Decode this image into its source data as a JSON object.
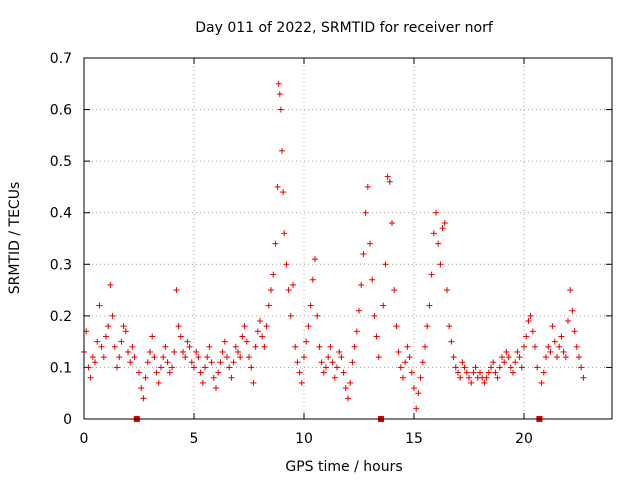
{
  "chart_data": {
    "type": "scatter",
    "title": "Day 011 of 2022, SRMTID for receiver norf",
    "xlabel": "GPS time / hours",
    "ylabel": "SRMTID / TECUs",
    "xlim": [
      0,
      24
    ],
    "ylim": [
      0,
      0.7
    ],
    "xticks": [
      0,
      5,
      10,
      15,
      20
    ],
    "yticks": [
      0,
      0.1,
      0.2,
      0.3,
      0.4,
      0.5,
      0.6,
      0.7
    ],
    "xtick_labels": [
      "0",
      "5",
      "10",
      "15",
      "20"
    ],
    "ytick_labels": [
      "0",
      "0.1",
      "0.2",
      "0.3",
      "0.4",
      "0.5",
      "0.6",
      "0.7"
    ],
    "grid": true,
    "marker": "+",
    "color": "#e00000",
    "gap_markers_x": [
      2.4,
      13.5,
      20.7
    ],
    "series": [
      {
        "name": "SRMTID",
        "x": [
          0.0,
          0.1,
          0.2,
          0.3,
          0.4,
          0.5,
          0.6,
          0.7,
          0.8,
          0.9,
          1.0,
          1.1,
          1.2,
          1.3,
          1.4,
          1.5,
          1.6,
          1.7,
          1.8,
          1.9,
          2.0,
          2.1,
          2.2,
          2.3,
          2.5,
          2.6,
          2.7,
          2.8,
          2.9,
          3.0,
          3.1,
          3.2,
          3.3,
          3.4,
          3.5,
          3.6,
          3.7,
          3.8,
          3.9,
          4.0,
          4.1,
          4.2,
          4.3,
          4.4,
          4.5,
          4.6,
          4.7,
          4.8,
          4.9,
          5.0,
          5.1,
          5.2,
          5.3,
          5.4,
          5.5,
          5.6,
          5.7,
          5.8,
          5.9,
          6.0,
          6.1,
          6.2,
          6.3,
          6.4,
          6.5,
          6.6,
          6.7,
          6.8,
          6.9,
          7.0,
          7.1,
          7.2,
          7.3,
          7.4,
          7.5,
          7.6,
          7.7,
          7.8,
          7.9,
          8.0,
          8.1,
          8.2,
          8.3,
          8.4,
          8.5,
          8.6,
          8.7,
          8.8,
          8.85,
          8.9,
          8.95,
          9.0,
          9.05,
          9.1,
          9.2,
          9.3,
          9.4,
          9.5,
          9.6,
          9.7,
          9.8,
          9.9,
          10.0,
          10.1,
          10.2,
          10.3,
          10.4,
          10.5,
          10.6,
          10.7,
          10.8,
          10.9,
          11.0,
          11.1,
          11.2,
          11.3,
          11.4,
          11.5,
          11.6,
          11.7,
          11.8,
          11.9,
          12.0,
          12.1,
          12.2,
          12.3,
          12.4,
          12.5,
          12.6,
          12.7,
          12.8,
          12.9,
          13.0,
          13.1,
          13.2,
          13.3,
          13.4,
          13.6,
          13.7,
          13.8,
          13.9,
          14.0,
          14.1,
          14.2,
          14.3,
          14.4,
          14.5,
          14.6,
          14.7,
          14.8,
          14.9,
          15.0,
          15.1,
          15.2,
          15.3,
          15.4,
          15.5,
          15.6,
          15.7,
          15.8,
          15.9,
          16.0,
          16.1,
          16.2,
          16.3,
          16.4,
          16.5,
          16.6,
          16.7,
          16.8,
          16.9,
          17.0,
          17.1,
          17.2,
          17.3,
          17.4,
          17.5,
          17.6,
          17.7,
          17.8,
          17.9,
          18.0,
          18.1,
          18.2,
          18.3,
          18.4,
          18.5,
          18.6,
          18.7,
          18.8,
          18.9,
          19.0,
          19.1,
          19.2,
          19.3,
          19.4,
          19.5,
          19.6,
          19.7,
          19.8,
          19.9,
          20.0,
          20.1,
          20.2,
          20.3,
          20.4,
          20.5,
          20.6,
          20.8,
          20.9,
          21.0,
          21.1,
          21.2,
          21.3,
          21.4,
          21.5,
          21.6,
          21.7,
          21.8,
          21.9,
          22.0,
          22.1,
          22.2,
          22.3,
          22.4,
          22.5,
          22.6,
          22.7
        ],
        "y": [
          0.13,
          0.17,
          0.1,
          0.08,
          0.12,
          0.11,
          0.15,
          0.22,
          0.14,
          0.12,
          0.16,
          0.18,
          0.26,
          0.2,
          0.14,
          0.1,
          0.12,
          0.15,
          0.18,
          0.17,
          0.13,
          0.11,
          0.14,
          0.12,
          0.09,
          0.06,
          0.04,
          0.08,
          0.11,
          0.13,
          0.16,
          0.12,
          0.09,
          0.07,
          0.1,
          0.12,
          0.14,
          0.11,
          0.09,
          0.1,
          0.13,
          0.25,
          0.18,
          0.16,
          0.13,
          0.12,
          0.15,
          0.14,
          0.11,
          0.1,
          0.13,
          0.12,
          0.09,
          0.07,
          0.1,
          0.12,
          0.14,
          0.11,
          0.08,
          0.06,
          0.09,
          0.11,
          0.13,
          0.15,
          0.12,
          0.1,
          0.08,
          0.11,
          0.14,
          0.13,
          0.12,
          0.16,
          0.18,
          0.15,
          0.12,
          0.1,
          0.07,
          0.14,
          0.17,
          0.19,
          0.16,
          0.14,
          0.18,
          0.22,
          0.25,
          0.28,
          0.34,
          0.45,
          0.65,
          0.63,
          0.6,
          0.52,
          0.44,
          0.36,
          0.3,
          0.25,
          0.2,
          0.26,
          0.14,
          0.11,
          0.09,
          0.07,
          0.12,
          0.15,
          0.18,
          0.22,
          0.27,
          0.31,
          0.2,
          0.14,
          0.11,
          0.09,
          0.1,
          0.12,
          0.14,
          0.11,
          0.08,
          0.1,
          0.13,
          0.12,
          0.09,
          0.06,
          0.04,
          0.07,
          0.11,
          0.14,
          0.17,
          0.21,
          0.26,
          0.32,
          0.4,
          0.45,
          0.34,
          0.27,
          0.2,
          0.16,
          0.12,
          0.22,
          0.3,
          0.47,
          0.46,
          0.38,
          0.25,
          0.18,
          0.13,
          0.1,
          0.08,
          0.11,
          0.14,
          0.12,
          0.09,
          0.06,
          0.02,
          0.05,
          0.08,
          0.11,
          0.14,
          0.18,
          0.22,
          0.28,
          0.36,
          0.4,
          0.34,
          0.3,
          0.37,
          0.38,
          0.25,
          0.18,
          0.15,
          0.12,
          0.1,
          0.09,
          0.08,
          0.11,
          0.1,
          0.09,
          0.08,
          0.07,
          0.09,
          0.1,
          0.08,
          0.09,
          0.08,
          0.07,
          0.08,
          0.09,
          0.1,
          0.11,
          0.09,
          0.08,
          0.1,
          0.12,
          0.11,
          0.13,
          0.12,
          0.1,
          0.09,
          0.11,
          0.13,
          0.12,
          0.1,
          0.14,
          0.16,
          0.19,
          0.2,
          0.17,
          0.14,
          0.1,
          0.07,
          0.09,
          0.12,
          0.14,
          0.13,
          0.18,
          0.15,
          0.12,
          0.14,
          0.16,
          0.13,
          0.12,
          0.19,
          0.25,
          0.21,
          0.17,
          0.14,
          0.12,
          0.1,
          0.08
        ]
      }
    ]
  }
}
